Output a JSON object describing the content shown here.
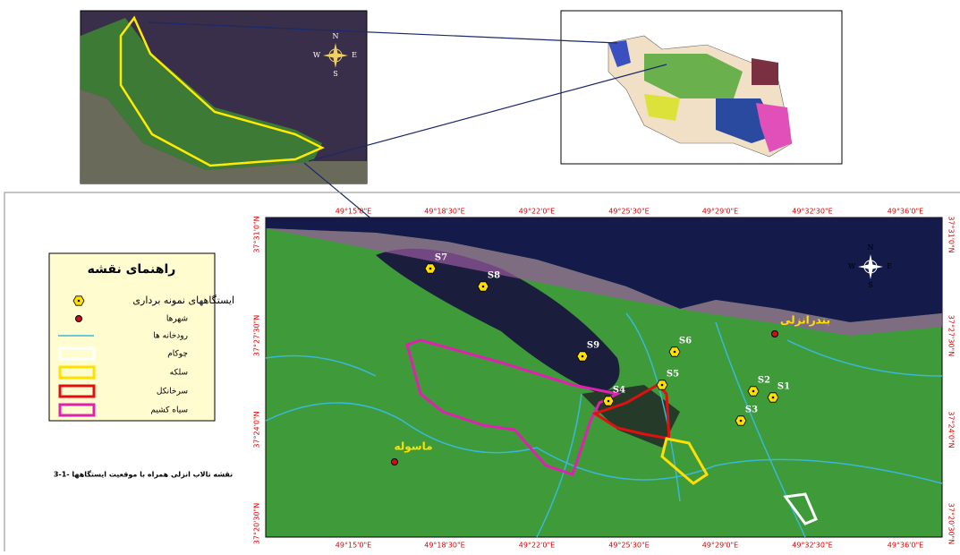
{
  "lon_labels": [
    "49°15'0\"E",
    "49°18'30\"E",
    "49°22'0\"E",
    "49°25'30\"E",
    "49°29'0\"E",
    "49°32'30\"E",
    "49°36'0\"E"
  ],
  "lat_labels": [
    "37°31'0\"N",
    "37°27'30\"N",
    "37°24'0\"N",
    "37°20'30\"N"
  ],
  "compass": {
    "n": "N",
    "s": "S",
    "e": "E",
    "w": "W"
  },
  "legend": {
    "title": "راهنمای نقشه",
    "items": [
      "ایستگاههای نمونه برداری",
      "شهرها",
      "رودخانه ها",
      "چوکام",
      "سلکه",
      "سرخانکل",
      "سیاه کشیم"
    ]
  },
  "stations": [
    "S1",
    "S2",
    "S3",
    "S4",
    "S5",
    "S6",
    "S7",
    "S8",
    "S9"
  ],
  "cities": [
    "بندرانزلی",
    "ماسوله"
  ],
  "caption": "3-1- نقشه تالاب انزلی همراه با موقعیت ایستگاهها"
}
